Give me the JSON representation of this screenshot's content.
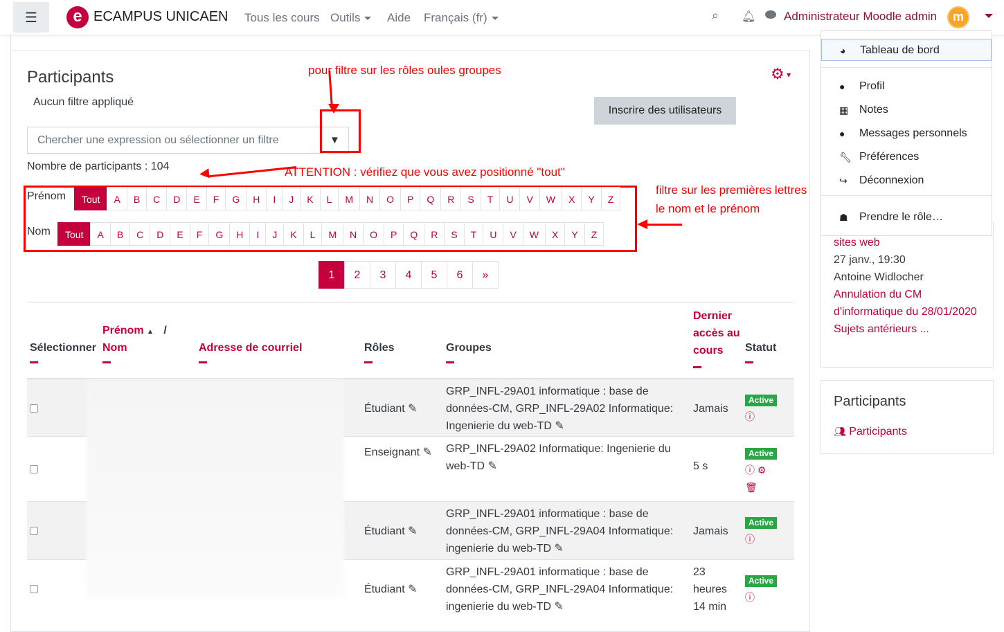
{
  "nav": {
    "menu_icon": "hamburger-icon",
    "brand": "ECAMPUS UNICAEN",
    "logo_letter": "e",
    "links": [
      "Tous les cours",
      "Outils",
      "Aide",
      "Français (fr)"
    ],
    "user": "Administrateur Moodle admin",
    "avatar": "m"
  },
  "user_menu": {
    "items": [
      {
        "icon": "dashboard-icon",
        "label": "Tableau de bord"
      },
      {
        "icon": "user-icon",
        "label": "Profil"
      },
      {
        "icon": "table-icon",
        "label": "Notes"
      },
      {
        "icon": "comment-icon",
        "label": "Messages personnels"
      },
      {
        "icon": "wrench-icon",
        "label": "Préférences"
      },
      {
        "icon": "sign-out-icon",
        "label": "Déconnexion"
      },
      {
        "icon": "user-secret-icon",
        "label": "Prendre le rôle…"
      }
    ]
  },
  "page": {
    "title": "Participants",
    "no_filter": "Aucun filtre appliqué",
    "enrol_button": "Inscrire des utilisateurs",
    "search_placeholder": "Chercher une expression ou sélectionner un filtre",
    "count": "Nombre de participants : 104"
  },
  "annotations": {
    "roles": "pour filtre sur les rôles oules groupes",
    "attention": "ATTENTION : vérifiez que vous avez positionné \"tout\"",
    "letters1": "filtre sur les premières lettres",
    "letters2": "le nom et le prénom"
  },
  "initials": {
    "first_label": "Prénom",
    "last_label": "Nom",
    "all": "Tout",
    "letters": [
      "A",
      "B",
      "C",
      "D",
      "E",
      "F",
      "G",
      "H",
      "I",
      "J",
      "K",
      "L",
      "M",
      "N",
      "O",
      "P",
      "Q",
      "R",
      "S",
      "T",
      "U",
      "V",
      "W",
      "X",
      "Y",
      "Z"
    ]
  },
  "pager": [
    "1",
    "2",
    "3",
    "4",
    "5",
    "6",
    "»"
  ],
  "table": {
    "headers": {
      "select": "Sélectionner",
      "first": "Prénom",
      "slash": "/",
      "last": "Nom",
      "email": "Adresse de courriel",
      "roles": "Rôles",
      "groups": "Groupes",
      "access": "Dernier accès au cours",
      "status": "Statut"
    },
    "rows": [
      {
        "role": "Étudiant",
        "groups": "GRP_INFL-29A01 informatique : base de données-CM, GRP_INFL-29A02 Informatique: Ingenierie du web-TD",
        "access": "Jamais",
        "status": "Active"
      },
      {
        "role": "Enseignant",
        "groups": "GRP_INFL-29A02 Informatique: Ingenierie du web-TD",
        "access": "5 s",
        "status": "Active"
      },
      {
        "role": "Étudiant",
        "groups": "GRP_INFL-29A01 informatique : base de données-CM, GRP_INFL-29A04 Informatique: ingenierie du web-TD",
        "access": "Jamais",
        "status": "Active"
      },
      {
        "role": "Étudiant",
        "groups": "GRP_INFL-29A01 informatique : base de données-CM, GRP_INFL-29A04 Informatique: ingenierie du web-TD",
        "access": "23 heures 14 min",
        "status": "Active"
      }
    ]
  },
  "side": {
    "news": [
      "sites web",
      "27 janv., 19:30",
      "Antoine Widlocher",
      "Annulation du CM d'informatique du 28/01/2020",
      "Sujets antérieurs ..."
    ],
    "block_title": "Participants",
    "block_link": "Participants"
  },
  "colors": {
    "accent": "#c4003d",
    "annotation": "#ff0000",
    "badge": "#28a745"
  }
}
